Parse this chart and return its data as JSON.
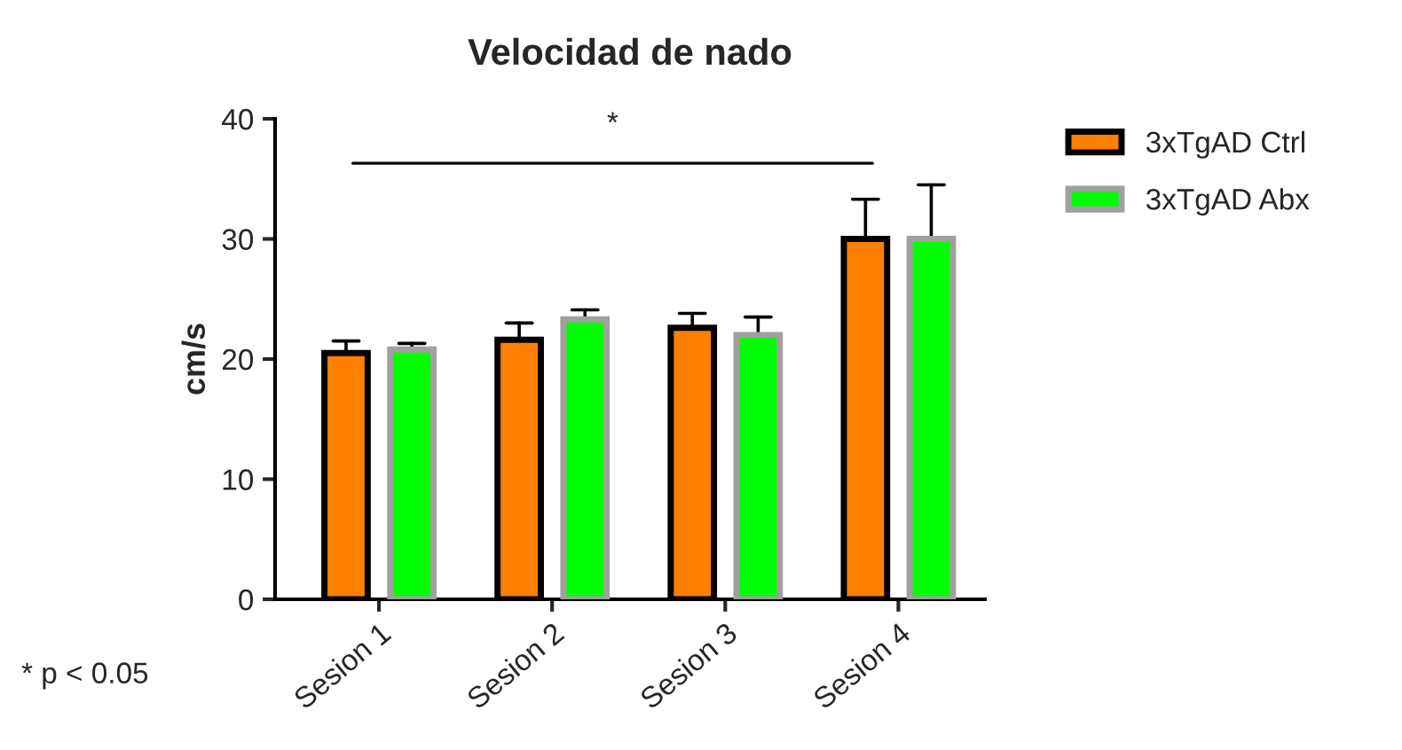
{
  "chart_data": {
    "type": "bar",
    "title": "Velocidad de nado",
    "ylabel": "cm/s",
    "categories": [
      "Sesion 1",
      "Sesion 2",
      "Sesion 3",
      "Sesion 4"
    ],
    "series": [
      {
        "name": "3xTgAD Ctrl",
        "color": "#ff8000",
        "values": [
          20.5,
          21.6,
          22.6,
          30.0
        ],
        "errors": [
          [
            20.5,
            21.5
          ],
          [
            21.6,
            23.0
          ],
          [
            22.6,
            23.8
          ],
          [
            30.0,
            33.3
          ]
        ]
      },
      {
        "name": "3xTgAD Abx",
        "color": "#00ff00",
        "values": [
          20.8,
          23.3,
          22.0,
          30.0
        ],
        "errors": [
          [
            20.8,
            21.3
          ],
          [
            23.3,
            24.1
          ],
          [
            22.0,
            23.5
          ],
          [
            30.0,
            34.5
          ]
        ]
      }
    ],
    "ylim": [
      0,
      40
    ],
    "yticks": [
      0,
      10,
      20,
      30,
      40
    ],
    "grid": false,
    "legend": "top right",
    "ref_lines": [
      {
        "axis": "y",
        "value": 36.3,
        "label": "*",
        "color": "#000000"
      }
    ],
    "annotations": [
      "* p < 0.05"
    ]
  }
}
